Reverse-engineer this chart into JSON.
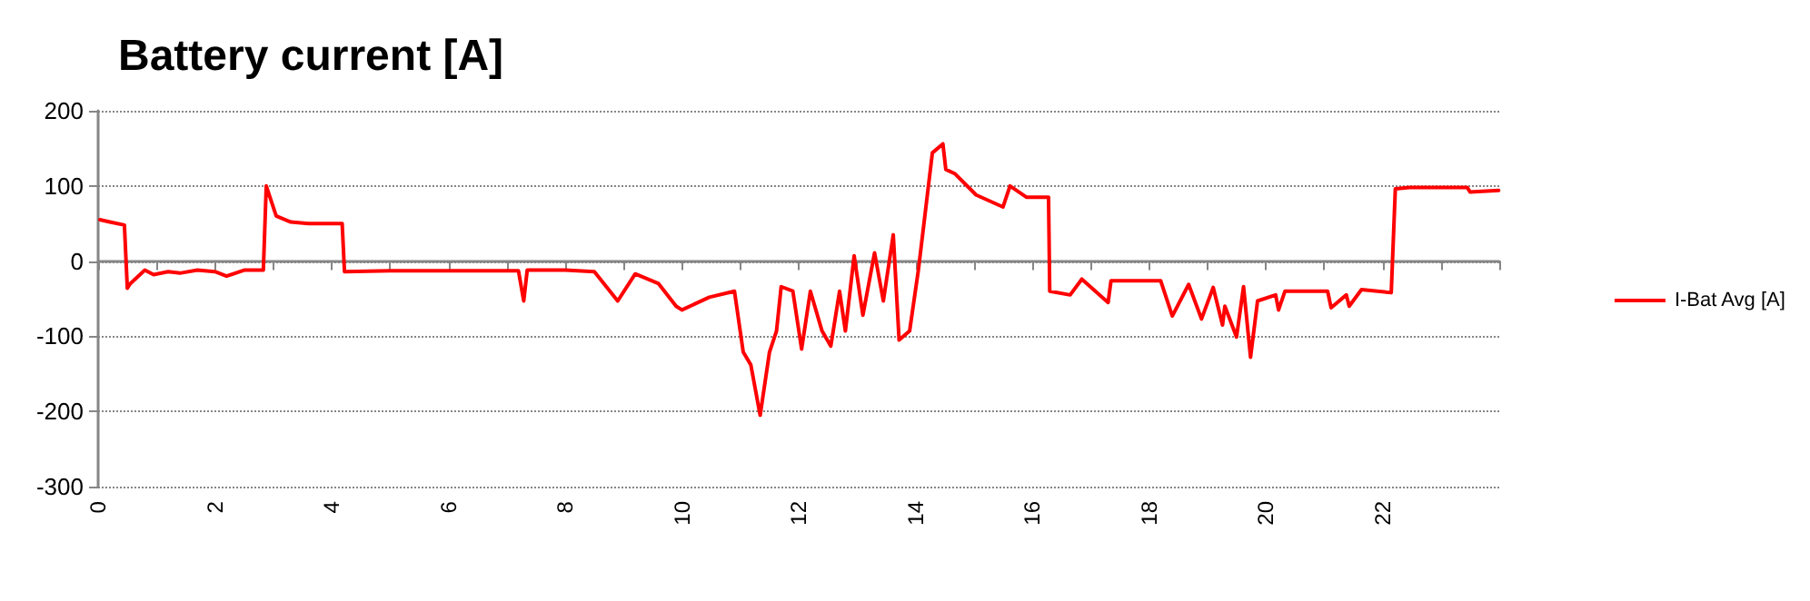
{
  "chart_data": {
    "type": "line",
    "title": "Battery current [A]",
    "xlim": [
      0,
      24
    ],
    "xticks": [
      0,
      {
        "value": 1,
        "label": null
      },
      2,
      {
        "value": 3,
        "label": null
      },
      4,
      {
        "value": 5,
        "label": null
      },
      6,
      {
        "value": 7,
        "label": null
      },
      8,
      {
        "value": 9,
        "label": null
      },
      10,
      {
        "value": 11,
        "label": null
      },
      12,
      {
        "value": 13,
        "label": null
      },
      14,
      {
        "value": 15,
        "label": null
      },
      16,
      {
        "value": 17,
        "label": null
      },
      18,
      {
        "value": 19,
        "label": null
      },
      20,
      {
        "value": 21,
        "label": null
      },
      22,
      {
        "value": 23,
        "label": null
      },
      {
        "value": 24,
        "label": null
      }
    ],
    "ylim": [
      -300,
      200
    ],
    "yticks": [
      -300,
      -200,
      -100,
      0,
      100,
      200
    ],
    "grid": "y",
    "legend": "right",
    "marker": "none",
    "line_style": "solid",
    "series": [
      {
        "name": "I-Bat Avg [A]",
        "color": "#ff0000",
        "x": [
          0.03,
          0.2,
          0.45,
          0.5,
          0.55,
          0.8,
          0.95,
          1.2,
          1.4,
          1.7,
          2.0,
          2.2,
          2.5,
          2.83,
          2.88,
          3.05,
          3.3,
          3.6,
          4.18,
          4.22,
          5.0,
          6.0,
          7.2,
          7.29,
          7.35,
          8.0,
          8.5,
          8.9,
          9.2,
          9.6,
          9.9,
          10.0,
          10.47,
          10.9,
          11.05,
          11.18,
          11.34,
          11.5,
          11.62,
          11.7,
          11.9,
          12.05,
          12.2,
          12.4,
          12.55,
          12.7,
          12.8,
          12.95,
          13.1,
          13.3,
          13.45,
          13.62,
          13.72,
          13.9,
          14.05,
          14.29,
          14.47,
          14.52,
          14.68,
          15.04,
          15.5,
          15.62,
          15.9,
          16.28,
          16.3,
          16.65,
          16.85,
          17.3,
          17.35,
          18.2,
          18.4,
          18.68,
          18.9,
          19.1,
          19.26,
          19.3,
          19.5,
          19.62,
          19.74,
          19.86,
          20.17,
          20.22,
          20.33,
          21.06,
          21.12,
          21.38,
          21.43,
          21.64,
          22.15,
          22.22,
          22.46,
          23.45,
          23.5,
          23.99
        ],
        "values": [
          55,
          52,
          48,
          -36,
          -30,
          -12,
          -18,
          -14,
          -16,
          -12,
          -14,
          -20,
          -12,
          -12,
          100,
          60,
          52,
          50,
          50,
          -14,
          -13,
          -13,
          -13,
          -53,
          -12,
          -12,
          -14,
          -53,
          -17,
          -30,
          -60,
          -65,
          -48,
          -40,
          -121,
          -138,
          -205,
          -121,
          -93,
          -34,
          -40,
          -117,
          -40,
          -93,
          -113,
          -40,
          -93,
          7,
          -72,
          11,
          -53,
          35,
          -105,
          -93,
          -12,
          144,
          156,
          122,
          116,
          88,
          72,
          100,
          85,
          85,
          -40,
          -45,
          -24,
          -55,
          -26,
          -26,
          -73,
          -31,
          -77,
          -35,
          -85,
          -60,
          -101,
          -34,
          -128,
          -53,
          -45,
          -65,
          -40,
          -40,
          -62,
          -45,
          -60,
          -38,
          -42,
          96,
          98,
          98,
          92,
          94
        ]
      }
    ]
  }
}
